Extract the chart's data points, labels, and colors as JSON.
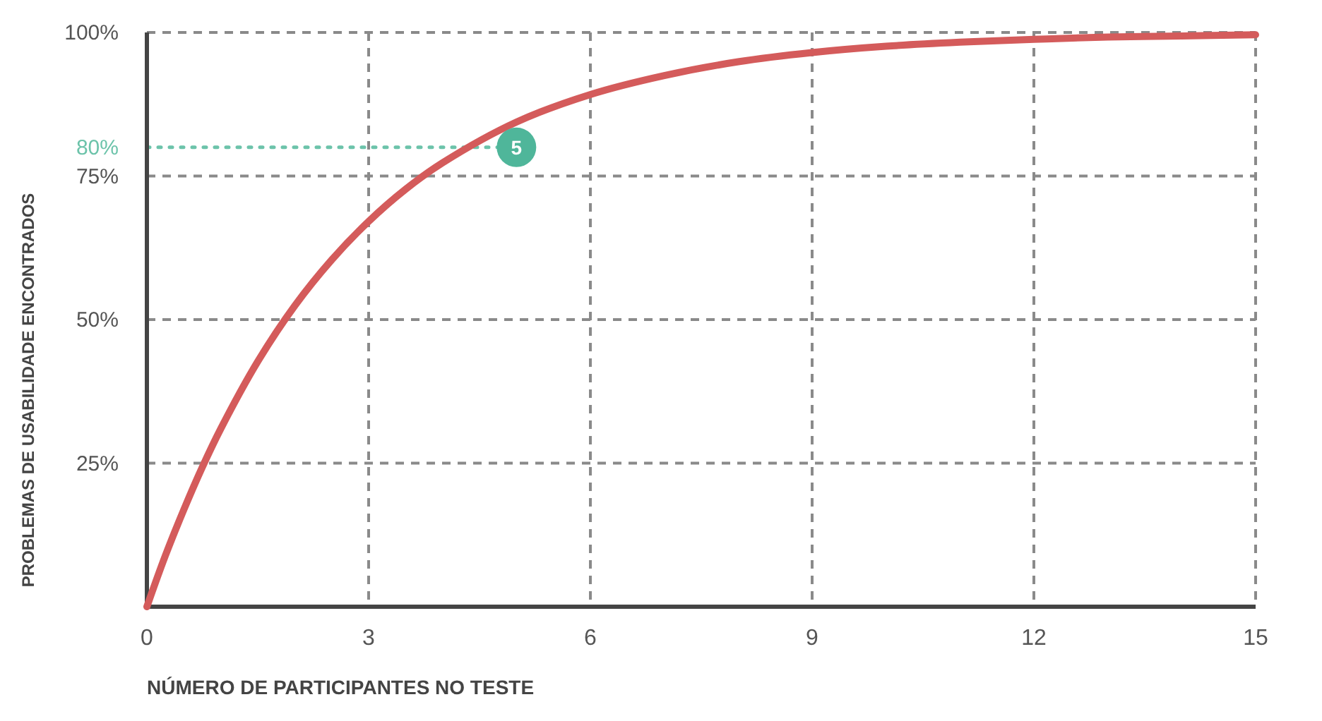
{
  "chart_data": {
    "type": "line",
    "xlabel": "NÚMERO DE PARTICIPANTES NO TESTE",
    "ylabel": "PROBLEMAS DE USABILIDADE ENCONTRADOS",
    "xlim": [
      0,
      15
    ],
    "xticks": [
      0,
      3,
      6,
      9,
      12,
      15
    ],
    "ylim": [
      0,
      100
    ],
    "yticks": [
      {
        "value": 0,
        "label": null
      },
      {
        "value": 25,
        "label": "25%"
      },
      {
        "value": 50,
        "label": "50%"
      },
      {
        "value": 75,
        "label": "75%"
      },
      {
        "value": 100,
        "label": "100%"
      }
    ],
    "grid": true,
    "marker": "none",
    "line_style": "solid",
    "series": [
      {
        "color": "#d45b5b",
        "x": [
          0,
          0.25,
          0.5,
          0.75,
          1,
          1.5,
          2,
          2.5,
          3,
          3.5,
          4,
          5,
          6,
          7,
          8,
          9,
          10,
          11,
          12,
          13,
          14,
          15
        ],
        "values": [
          0,
          8.9,
          16.9,
          24.3,
          31,
          42.7,
          52.4,
          60.4,
          67.1,
          72.7,
          77.3,
          84.4,
          89.2,
          92.5,
          94.9,
          96.5,
          97.6,
          98.3,
          98.8,
          99.2,
          99.4,
          99.6
        ]
      },
      {
        "type": "scatter",
        "marker": "circle",
        "color": "#4fb69a",
        "x": [
          5
        ],
        "values": [
          80
        ]
      }
    ],
    "annotations": [
      {
        "text": "5",
        "x": 5,
        "y": 80
      }
    ],
    "ref_lines": [
      {
        "axis": "y",
        "value": 80,
        "label": "80%",
        "color": "#6cc3aa",
        "line_style": "dotted"
      }
    ]
  }
}
